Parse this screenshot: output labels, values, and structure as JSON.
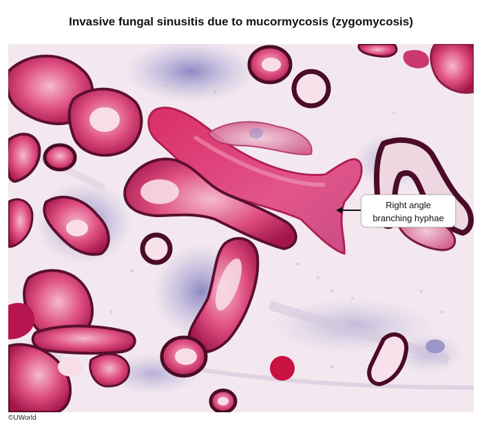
{
  "figure": {
    "title": "Invasive fungal sinusitis due to mucormycosis (zygomycosis)",
    "callout": {
      "line1": "Right angle",
      "line2": "branching hyphae"
    },
    "copyright": "©UWorld"
  },
  "colors": {
    "background_stroma": "#f4e9f0",
    "hyphae_fill": "#d6336b",
    "hyphae_wall": "#5a0f2e",
    "basophilic_stroma": "#8a86c4"
  }
}
